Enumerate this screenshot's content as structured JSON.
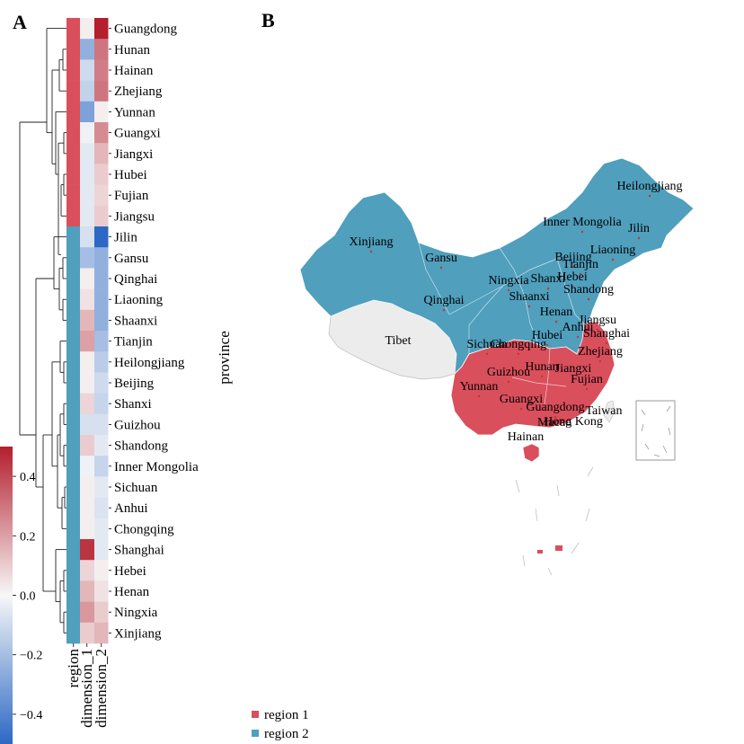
{
  "panels": {
    "a": "A",
    "b": "B"
  },
  "colors": {
    "region1": "#d94f5c",
    "region2": "#4f9fbd",
    "untracked": "#ececec",
    "border": "#ffffff"
  },
  "chart_data": [
    {
      "type": "heatmap",
      "row_axis_label": "province",
      "columns": [
        "region",
        "dimension_1",
        "dimension_2"
      ],
      "colorbar": {
        "range": [
          -0.5,
          0.5
        ],
        "ticks": [
          0.4,
          0.2,
          0.0,
          -0.2,
          -0.4
        ],
        "tick_labels": [
          "0.4",
          "0.2",
          "0.0",
          "−0.2",
          "−0.4"
        ],
        "colormap": "blue-white-red"
      },
      "rows": [
        {
          "province": "Guangdong",
          "region": 1,
          "dimension_1": 0.02,
          "dimension_2": 0.5
        },
        {
          "province": "Hunan",
          "region": 1,
          "dimension_1": -0.25,
          "dimension_2": 0.3
        },
        {
          "province": "Hainan",
          "region": 1,
          "dimension_1": -0.1,
          "dimension_2": 0.28
        },
        {
          "province": "Zhejiang",
          "region": 1,
          "dimension_1": -0.13,
          "dimension_2": 0.3
        },
        {
          "province": "Yunnan",
          "region": 1,
          "dimension_1": -0.3,
          "dimension_2": 0.02
        },
        {
          "province": "Guangxi",
          "region": 1,
          "dimension_1": -0.02,
          "dimension_2": 0.25
        },
        {
          "province": "Jiangxi",
          "region": 1,
          "dimension_1": -0.05,
          "dimension_2": 0.15
        },
        {
          "province": "Hubei",
          "region": 1,
          "dimension_1": -0.05,
          "dimension_2": 0.1
        },
        {
          "province": "Fujian",
          "region": 1,
          "dimension_1": -0.05,
          "dimension_2": 0.08
        },
        {
          "province": "Jiangsu",
          "region": 1,
          "dimension_1": -0.05,
          "dimension_2": 0.1
        },
        {
          "province": "Jilin",
          "region": 2,
          "dimension_1": -0.08,
          "dimension_2": -0.5
        },
        {
          "province": "Gansu",
          "region": 2,
          "dimension_1": -0.2,
          "dimension_2": -0.25
        },
        {
          "province": "Qinghai",
          "region": 2,
          "dimension_1": 0.02,
          "dimension_2": -0.25
        },
        {
          "province": "Liaoning",
          "region": 2,
          "dimension_1": 0.05,
          "dimension_2": -0.25
        },
        {
          "province": "Shaanxi",
          "region": 2,
          "dimension_1": 0.15,
          "dimension_2": -0.25
        },
        {
          "province": "Tianjin",
          "region": 2,
          "dimension_1": 0.2,
          "dimension_2": -0.2
        },
        {
          "province": "Heilongjiang",
          "region": 2,
          "dimension_1": 0.02,
          "dimension_2": -0.15
        },
        {
          "province": "Beijing",
          "region": 2,
          "dimension_1": 0.02,
          "dimension_2": -0.1
        },
        {
          "province": "Shanxi",
          "region": 2,
          "dimension_1": 0.08,
          "dimension_2": -0.12
        },
        {
          "province": "Guizhou",
          "region": 2,
          "dimension_1": -0.08,
          "dimension_2": -0.08
        },
        {
          "province": "Shandong",
          "region": 2,
          "dimension_1": 0.1,
          "dimension_2": -0.05
        },
        {
          "province": "Inner Mongolia",
          "region": 2,
          "dimension_1": -0.02,
          "dimension_2": -0.12
        },
        {
          "province": "Sichuan",
          "region": 2,
          "dimension_1": 0.02,
          "dimension_2": -0.05
        },
        {
          "province": "Anhui",
          "region": 2,
          "dimension_1": 0.02,
          "dimension_2": -0.07
        },
        {
          "province": "Chongqing",
          "region": 2,
          "dimension_1": 0.02,
          "dimension_2": -0.05
        },
        {
          "province": "Shanghai",
          "region": 2,
          "dimension_1": 0.45,
          "dimension_2": -0.05
        },
        {
          "province": "Hebei",
          "region": 2,
          "dimension_1": 0.08,
          "dimension_2": 0.02
        },
        {
          "province": "Henan",
          "region": 2,
          "dimension_1": 0.15,
          "dimension_2": 0.05
        },
        {
          "province": "Ningxia",
          "region": 2,
          "dimension_1": 0.22,
          "dimension_2": 0.1
        },
        {
          "province": "Xinjiang",
          "region": 2,
          "dimension_1": 0.1,
          "dimension_2": 0.15
        }
      ]
    },
    {
      "type": "map",
      "legend": [
        {
          "label": "region 1",
          "color": "#d94f5c"
        },
        {
          "label": "region 2",
          "color": "#4f9fbd"
        }
      ],
      "labels": [
        {
          "name": "Heilongjiang",
          "region": 2
        },
        {
          "name": "Inner Mongolia",
          "region": 2
        },
        {
          "name": "Jilin",
          "region": 2
        },
        {
          "name": "Xinjiang",
          "region": 2
        },
        {
          "name": "Liaoning",
          "region": 2
        },
        {
          "name": "Gansu",
          "region": 2
        },
        {
          "name": "Beijing",
          "region": 2
        },
        {
          "name": "Tianjin",
          "region": 2
        },
        {
          "name": "Ningxia",
          "region": 2
        },
        {
          "name": "Shanxi",
          "region": 2
        },
        {
          "name": "Hebei",
          "region": 2
        },
        {
          "name": "Qinghai",
          "region": 2
        },
        {
          "name": "Shaanxi",
          "region": 2
        },
        {
          "name": "Shandong",
          "region": 2
        },
        {
          "name": "Henan",
          "region": 2
        },
        {
          "name": "Jiangsu",
          "region": 1
        },
        {
          "name": "Tibet",
          "region": 0
        },
        {
          "name": "Anhui",
          "region": 2
        },
        {
          "name": "Hubei",
          "region": 1
        },
        {
          "name": "Shanghai",
          "region": 2
        },
        {
          "name": "Sichuan",
          "region": 2
        },
        {
          "name": "Chongqing",
          "region": 2
        },
        {
          "name": "Zhejiang",
          "region": 1
        },
        {
          "name": "Hunan",
          "region": 1
        },
        {
          "name": "Jiangxi",
          "region": 1
        },
        {
          "name": "Guizhou",
          "region": 2
        },
        {
          "name": "Fujian",
          "region": 1
        },
        {
          "name": "Yunnan",
          "region": 1
        },
        {
          "name": "Guangxi",
          "region": 1
        },
        {
          "name": "Guangdong",
          "region": 1
        },
        {
          "name": "Taiwan",
          "region": 0
        },
        {
          "name": "Hong Kong",
          "region": 0
        },
        {
          "name": "Macao",
          "region": 0
        },
        {
          "name": "Hainan",
          "region": 1
        }
      ]
    }
  ]
}
